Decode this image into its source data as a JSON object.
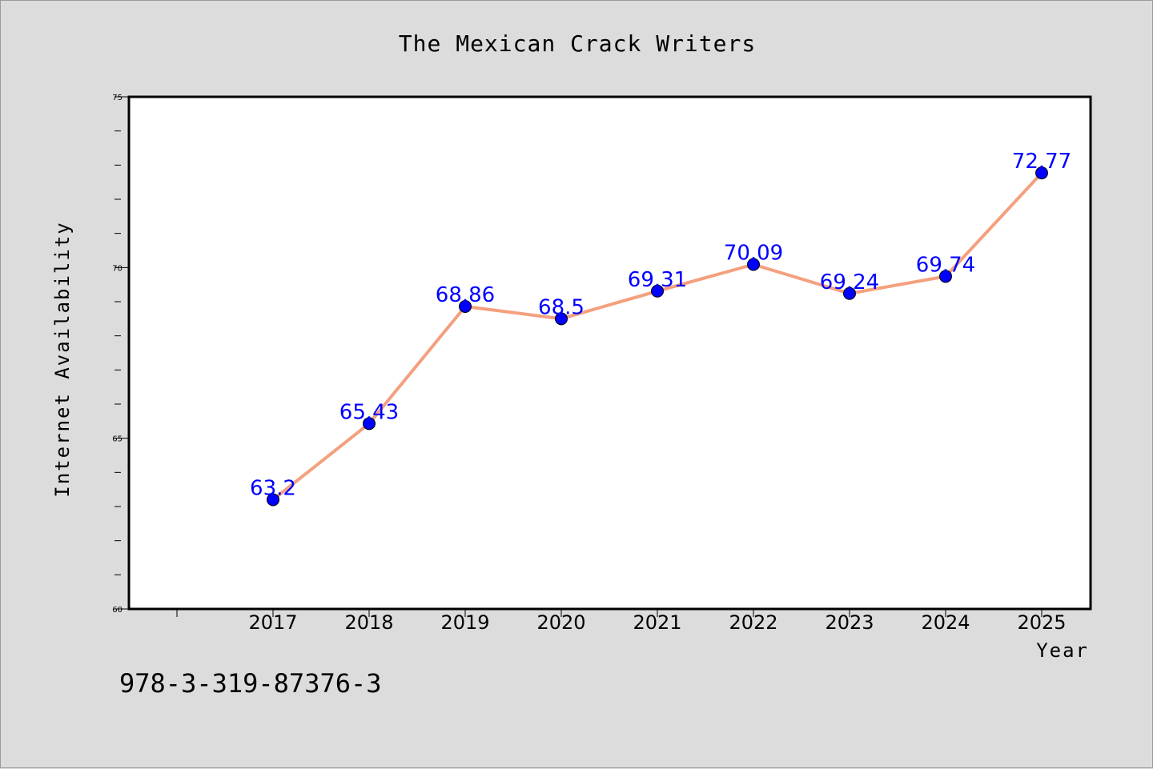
{
  "chart_data": {
    "type": "line",
    "title": "The Mexican Crack Writers",
    "xlabel": "Year",
    "ylabel": "Internet Availability",
    "categories": [
      "2017",
      "2018",
      "2019",
      "2020",
      "2021",
      "2022",
      "2023",
      "2024",
      "2025"
    ],
    "values": [
      63.2,
      65.43,
      68.86,
      68.5,
      69.31,
      70.09,
      69.24,
      69.74,
      72.77
    ],
    "data_labels": [
      "63.2",
      "65.43",
      "68.86",
      "68.5",
      "69.31",
      "70.09",
      "69.24",
      "69.74",
      "72.77"
    ],
    "ylim": [
      60,
      75
    ],
    "yticks": [
      "60",
      "65",
      "70",
      "75"
    ],
    "grid": false,
    "legend": "none",
    "colors": {
      "line": "#f4a07e",
      "marker": "#0000ff",
      "data_label": "#0000ff",
      "plot_background": "#ffffff",
      "figure_background": "#dcdcdc"
    }
  },
  "footer": {
    "text": "978-3-319-87376-3"
  }
}
